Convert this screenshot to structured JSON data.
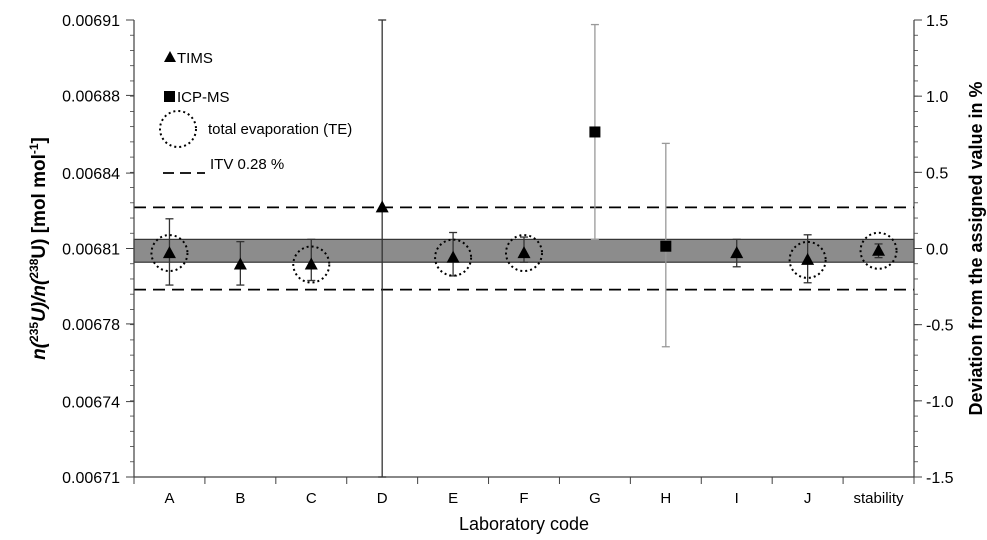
{
  "chart_data": {
    "type": "scatter",
    "xlabel": "Laboratory code",
    "ylabel_left": {
      "parts": [
        "n(",
        "235",
        "U)/n(",
        "238",
        "U) [mol mol",
        "-1",
        "]"
      ]
    },
    "ylabel_right": "Deviation from the assigned value in %",
    "categories": [
      "A",
      "B",
      "C",
      "D",
      "E",
      "F",
      "G",
      "H",
      "I",
      "J",
      "stability"
    ],
    "ylim_left": [
      0.00671,
      0.00691
    ],
    "ylim_right": [
      -1.5,
      1.5
    ],
    "yticks_left": [
      "0.00671",
      "0.00674",
      "0.00678",
      "0.00681",
      "0.00684",
      "0.00688",
      "0.00691"
    ],
    "yticks_right": [
      "-1.5",
      "-1.0",
      "-0.5",
      "0.0",
      "0.5",
      "1.0",
      "1.5"
    ],
    "yticks_left_values": [
      0.00671,
      0.006743,
      0.006777,
      0.00681,
      0.006843,
      0.006877,
      0.00691
    ],
    "yticks_right_values": [
      -1.5,
      -1.0,
      -0.5,
      0.0,
      0.5,
      1.0,
      1.5
    ],
    "assigned_band": [
      0.006804,
      0.006814
    ],
    "itv_lines": [
      0.006828,
      0.006792
    ],
    "series": [
      {
        "name": "TIMS",
        "marker": "triangle",
        "points": [
          {
            "x": "A",
            "y": 0.006808,
            "lo": 0.006794,
            "hi": 0.006823,
            "te": true,
            "color": "#333333"
          },
          {
            "x": "B",
            "y": 0.006803,
            "lo": 0.006794,
            "hi": 0.006813,
            "te": false,
            "color": "#333333"
          },
          {
            "x": "C",
            "y": 0.006803,
            "lo": 0.006796,
            "hi": 0.006814,
            "te": true,
            "color": "#333333"
          },
          {
            "x": "D",
            "y": 0.006828,
            "lo": 0.00671,
            "hi": 0.00691,
            "te": false,
            "color": "#333333"
          },
          {
            "x": "E",
            "y": 0.006806,
            "lo": 0.006798,
            "hi": 0.006817,
            "te": true,
            "color": "#333333"
          },
          {
            "x": "F",
            "y": 0.006808,
            "lo": 0.006804,
            "hi": 0.006815,
            "te": true,
            "color": "#333333"
          },
          {
            "x": "I",
            "y": 0.006808,
            "lo": 0.006802,
            "hi": 0.006814,
            "te": false,
            "color": "#333333"
          },
          {
            "x": "J",
            "y": 0.006805,
            "lo": 0.006795,
            "hi": 0.006816,
            "te": true,
            "color": "#333333"
          },
          {
            "x": "stability",
            "y": 0.006809,
            "lo": 0.006806,
            "hi": 0.006812,
            "te": true,
            "color": "#333333"
          }
        ]
      },
      {
        "name": "ICP-MS",
        "marker": "square",
        "points": [
          {
            "x": "G",
            "y": 0.006861,
            "lo": 0.006814,
            "hi": 0.006908,
            "te": false,
            "color": "#999999"
          },
          {
            "x": "H",
            "y": 0.006811,
            "lo": 0.006767,
            "hi": 0.006856,
            "te": false,
            "color": "#999999"
          }
        ]
      }
    ],
    "legend": {
      "placement": "top-left",
      "entries": [
        {
          "symbol": "triangle",
          "label": "TIMS"
        },
        {
          "symbol": "square",
          "label": "ICP-MS"
        },
        {
          "symbol": "dotted-circle",
          "label": "total evaporation (TE)"
        },
        {
          "symbol": "dashed-line",
          "label": "ITV 0.28 %"
        }
      ]
    },
    "colors": {
      "band_fill": "#8c8c8c",
      "band_edge": "#333333",
      "axis": "#404040",
      "marker": "#000000"
    },
    "grid": false
  }
}
